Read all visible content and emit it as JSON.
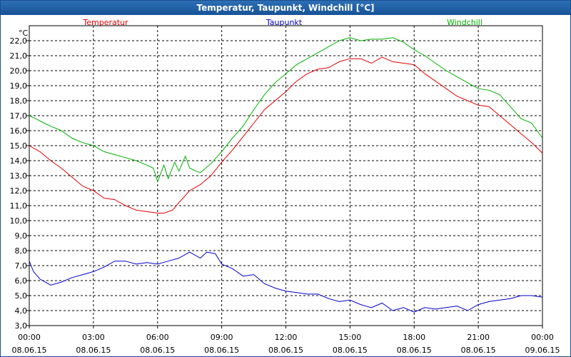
{
  "window": {
    "title": "Temperatur, Taupunkt, Windchill [°C]"
  },
  "chart_data": {
    "type": "line",
    "title": "Temperatur, Taupunkt, Windchill [°C]",
    "yunit": "°C",
    "ylim": [
      3.0,
      23.0
    ],
    "yticks": [
      "3,0",
      "4,0",
      "5,0",
      "6,0",
      "7,0",
      "8,0",
      "9,0",
      "10,0",
      "11,0",
      "12,0",
      "13,0",
      "14,0",
      "15,0",
      "16,0",
      "17,0",
      "18,0",
      "19,0",
      "20,0",
      "21,0",
      "22,0"
    ],
    "xlim": [
      0,
      24
    ],
    "xticks": [
      {
        "time": "00:00",
        "date": "08.06.15"
      },
      {
        "time": "03:00",
        "date": "08.06.15"
      },
      {
        "time": "06:00",
        "date": "08.06.15"
      },
      {
        "time": "09:00",
        "date": "08.06.15"
      },
      {
        "time": "12:00",
        "date": "08.06.15"
      },
      {
        "time": "15:00",
        "date": "08.06.15"
      },
      {
        "time": "18:00",
        "date": "08.06.15"
      },
      {
        "time": "21:00",
        "date": "08.06.15"
      },
      {
        "time": "00:00",
        "date": "09.06.15"
      }
    ],
    "grid": true,
    "legend_position": "top",
    "series": [
      {
        "name": "Temperatur",
        "color": "#e00000",
        "x": [
          0,
          0.5,
          1,
          1.5,
          2,
          2.5,
          3,
          3.5,
          4,
          4.5,
          5,
          5.5,
          6,
          6.3,
          6.7,
          7,
          7.5,
          8,
          8.5,
          9,
          9.5,
          10,
          10.5,
          11,
          11.5,
          12,
          12.5,
          13,
          13.5,
          14,
          14.5,
          15,
          15.5,
          16,
          16.5,
          17,
          17.5,
          18,
          18.5,
          19,
          19.5,
          20,
          20.5,
          21,
          21.5,
          22,
          22.5,
          23,
          23.5,
          24
        ],
        "values": [
          15.0,
          14.6,
          14.0,
          13.5,
          12.9,
          12.3,
          12.0,
          11.5,
          11.4,
          11.0,
          10.7,
          10.6,
          10.5,
          10.5,
          10.7,
          11.2,
          12.0,
          12.4,
          13.0,
          13.9,
          14.7,
          15.6,
          16.5,
          17.4,
          18.0,
          18.6,
          19.3,
          19.8,
          20.1,
          20.2,
          20.6,
          20.8,
          20.8,
          20.5,
          20.9,
          20.6,
          20.5,
          20.4,
          19.8,
          19.3,
          18.8,
          18.3,
          18.0,
          17.7,
          17.6,
          17.0,
          16.4,
          15.8,
          15.2,
          14.5
        ]
      },
      {
        "name": "Taupunkt",
        "color": "#0000cc",
        "x": [
          0,
          0.2,
          0.5,
          1,
          1.5,
          2,
          2.5,
          3,
          3.5,
          4,
          4.5,
          5,
          5.5,
          6,
          6.5,
          7,
          7.5,
          8,
          8.3,
          8.7,
          9,
          9.5,
          10,
          10.5,
          11,
          11.5,
          12,
          12.5,
          13,
          13.5,
          14,
          14.5,
          15,
          15.5,
          16,
          16.5,
          17,
          17.5,
          18,
          18.5,
          19,
          19.5,
          20,
          20.5,
          21,
          21.5,
          22,
          22.5,
          23,
          23.5,
          24
        ],
        "values": [
          7.3,
          6.6,
          6.1,
          5.7,
          5.9,
          6.2,
          6.4,
          6.6,
          6.9,
          7.3,
          7.3,
          7.1,
          7.2,
          7.1,
          7.3,
          7.5,
          7.9,
          7.5,
          7.9,
          7.8,
          7.1,
          6.8,
          6.3,
          6.4,
          5.8,
          5.5,
          5.3,
          5.2,
          5.1,
          5.1,
          4.8,
          4.6,
          4.7,
          4.4,
          4.2,
          4.5,
          4.0,
          4.2,
          3.9,
          4.2,
          4.1,
          4.2,
          4.3,
          4.0,
          4.4,
          4.6,
          4.7,
          4.8,
          5.0,
          5.0,
          4.9
        ]
      },
      {
        "name": "Windchill",
        "color": "#00b000",
        "x": [
          0,
          0.3,
          0.7,
          1,
          1.5,
          2,
          2.5,
          3,
          3.5,
          4,
          4.5,
          5,
          5.5,
          5.8,
          6,
          6.3,
          6.5,
          6.8,
          7,
          7.3,
          7.5,
          7.8,
          8,
          8.5,
          9,
          9.5,
          10,
          10.5,
          11,
          11.5,
          12,
          12.5,
          13,
          13.5,
          14,
          14.5,
          15,
          15.5,
          16,
          16.5,
          17,
          17.5,
          18,
          18.5,
          19,
          19.5,
          20,
          20.5,
          21,
          21.5,
          22,
          22.5,
          23,
          23.5,
          24
        ],
        "values": [
          17.0,
          16.8,
          16.5,
          16.3,
          16.0,
          15.5,
          15.2,
          15.0,
          14.6,
          14.4,
          14.2,
          14.0,
          13.7,
          13.5,
          12.6,
          13.7,
          12.8,
          13.9,
          13.3,
          14.3,
          13.5,
          13.3,
          13.2,
          13.8,
          14.6,
          15.5,
          16.3,
          17.4,
          18.4,
          19.2,
          19.8,
          20.4,
          20.8,
          21.2,
          21.6,
          22.0,
          22.2,
          22.0,
          22.1,
          22.1,
          22.2,
          21.9,
          21.4,
          21.0,
          20.5,
          20.0,
          19.6,
          19.2,
          18.8,
          18.7,
          18.4,
          17.6,
          16.8,
          16.5,
          15.5
        ]
      }
    ]
  }
}
